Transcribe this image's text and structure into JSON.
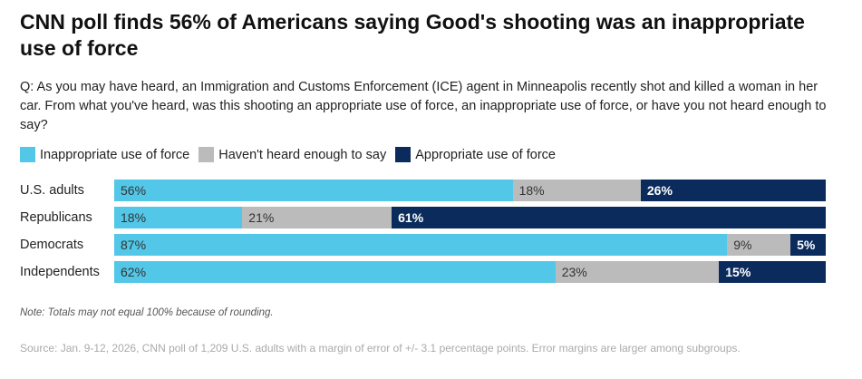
{
  "title": "CNN poll finds 56% of Americans saying Good's shooting was an inappropriate use of force",
  "question": "Q: As you may have heard, an Immigration and Customs Enforcement (ICE) agent in Minneapolis recently shot and killed a woman in her car. From what you've heard, was this shooting an appropriate use of force, an inappropriate use of force, or have you not heard enough to say?",
  "note": "Note: Totals may not equal 100% because of rounding.",
  "source": "Source: Jan. 9-12, 2026, CNN poll of 1,209 U.S. adults with a margin of error of +/- 3.1 percentage points. Error margins are larger among subgroups.",
  "chart_data": {
    "type": "bar",
    "orientation": "horizontal-stacked",
    "categories": [
      "U.S. adults",
      "Republicans",
      "Democrats",
      "Independents"
    ],
    "series": [
      {
        "name": "Inappropriate use of force",
        "color": "#52c7e8",
        "text_color": "#333333",
        "values": [
          56,
          18,
          87,
          62
        ]
      },
      {
        "name": "Haven't heard enough to say",
        "color": "#bbbbbb",
        "text_color": "#333333",
        "values": [
          18,
          21,
          9,
          23
        ]
      },
      {
        "name": "Appropriate use of force",
        "color": "#0b2b5c",
        "text_color": "#ffffff",
        "values": [
          26,
          61,
          5,
          15
        ]
      }
    ],
    "legend_position": "top-left",
    "xlim": [
      0,
      100
    ]
  }
}
